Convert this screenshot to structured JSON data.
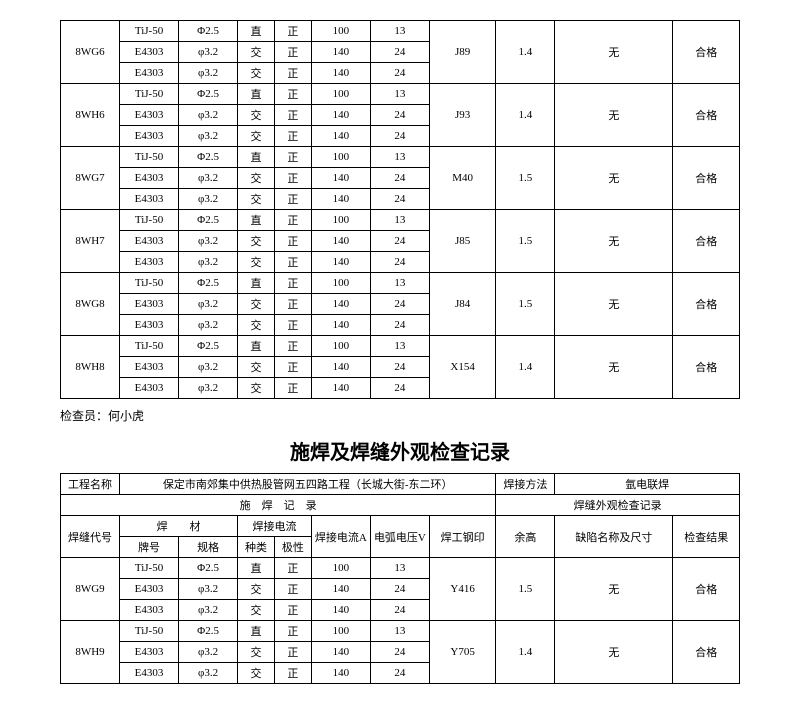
{
  "table1": {
    "groups": [
      {
        "id": "8WG6",
        "rows": [
          [
            "TiJ-50",
            "Φ2.5",
            "直",
            "正",
            "100",
            "13"
          ],
          [
            "E4303",
            "φ3.2",
            "交",
            "正",
            "140",
            "24"
          ],
          [
            "E4303",
            "φ3.2",
            "交",
            "正",
            "140",
            "24"
          ]
        ],
        "stamp": "J89",
        "h": "1.4",
        "defect": "无",
        "result": "合格"
      },
      {
        "id": "8WH6",
        "rows": [
          [
            "TiJ-50",
            "Φ2.5",
            "直",
            "正",
            "100",
            "13"
          ],
          [
            "E4303",
            "φ3.2",
            "交",
            "正",
            "140",
            "24"
          ],
          [
            "E4303",
            "φ3.2",
            "交",
            "正",
            "140",
            "24"
          ]
        ],
        "stamp": "J93",
        "h": "1.4",
        "defect": "无",
        "result": "合格"
      },
      {
        "id": "8WG7",
        "rows": [
          [
            "TiJ-50",
            "Φ2.5",
            "直",
            "正",
            "100",
            "13"
          ],
          [
            "E4303",
            "φ3.2",
            "交",
            "正",
            "140",
            "24"
          ],
          [
            "E4303",
            "φ3.2",
            "交",
            "正",
            "140",
            "24"
          ]
        ],
        "stamp": "M40",
        "h": "1.5",
        "defect": "无",
        "result": "合格"
      },
      {
        "id": "8WH7",
        "rows": [
          [
            "TiJ-50",
            "Φ2.5",
            "直",
            "正",
            "100",
            "13"
          ],
          [
            "E4303",
            "φ3.2",
            "交",
            "正",
            "140",
            "24"
          ],
          [
            "E4303",
            "φ3.2",
            "交",
            "正",
            "140",
            "24"
          ]
        ],
        "stamp": "J85",
        "h": "1.5",
        "defect": "无",
        "result": "合格"
      },
      {
        "id": "8WG8",
        "rows": [
          [
            "TiJ-50",
            "Φ2.5",
            "直",
            "正",
            "100",
            "13"
          ],
          [
            "E4303",
            "φ3.2",
            "交",
            "正",
            "140",
            "24"
          ],
          [
            "E4303",
            "φ3.2",
            "交",
            "正",
            "140",
            "24"
          ]
        ],
        "stamp": "J84",
        "h": "1.5",
        "defect": "无",
        "result": "合格"
      },
      {
        "id": "8WH8",
        "rows": [
          [
            "TiJ-50",
            "Φ2.5",
            "直",
            "正",
            "100",
            "13"
          ],
          [
            "E4303",
            "φ3.2",
            "交",
            "正",
            "140",
            "24"
          ],
          [
            "E4303",
            "φ3.2",
            "交",
            "正",
            "140",
            "24"
          ]
        ],
        "stamp": "X154",
        "h": "1.4",
        "defect": "无",
        "result": "合格"
      }
    ]
  },
  "inspector": "检查员：何小虎",
  "title": "施焊及焊缝外观检查记录",
  "table2": {
    "projectLabel": "工程名称",
    "projectName": "保定市南郊集中供热股管网五四路工程（长城大街-东二环）",
    "methodLabel": "焊接方法",
    "methodValue": "氩电联焊",
    "sec1": "施　焊　记　录",
    "sec2": "焊缝外观检查记录",
    "h1": "焊缝代号",
    "h2": "焊　　材",
    "h3": "焊接电流",
    "h4": "焊接电流A",
    "h5": "电弧电压V",
    "h6": "焊工钢印",
    "h7": "余高",
    "h8": "缺陷名称及尺寸",
    "h9": "检查结果",
    "sh1": "牌号",
    "sh2": "规格",
    "sh3": "种类",
    "sh4": "极性",
    "groups": [
      {
        "id": "8WG9",
        "rows": [
          [
            "TiJ-50",
            "Φ2.5",
            "直",
            "正",
            "100",
            "13"
          ],
          [
            "E4303",
            "φ3.2",
            "交",
            "正",
            "140",
            "24"
          ],
          [
            "E4303",
            "φ3.2",
            "交",
            "正",
            "140",
            "24"
          ]
        ],
        "stamp": "Y416",
        "h": "1.5",
        "defect": "无",
        "result": "合格"
      },
      {
        "id": "8WH9",
        "rows": [
          [
            "TiJ-50",
            "Φ2.5",
            "直",
            "正",
            "100",
            "13"
          ],
          [
            "E4303",
            "φ3.2",
            "交",
            "正",
            "140",
            "24"
          ],
          [
            "E4303",
            "φ3.2",
            "交",
            "正",
            "140",
            "24"
          ]
        ],
        "stamp": "Y705",
        "h": "1.4",
        "defect": "无",
        "result": "合格"
      }
    ]
  },
  "cols": {
    "c0": "8%",
    "c1": "8%",
    "c2": "8%",
    "c3": "5%",
    "c4": "5%",
    "c5": "8%",
    "c6": "8%",
    "c7": "9%",
    "c8": "8%",
    "c9": "16%",
    "c10": "9%"
  }
}
